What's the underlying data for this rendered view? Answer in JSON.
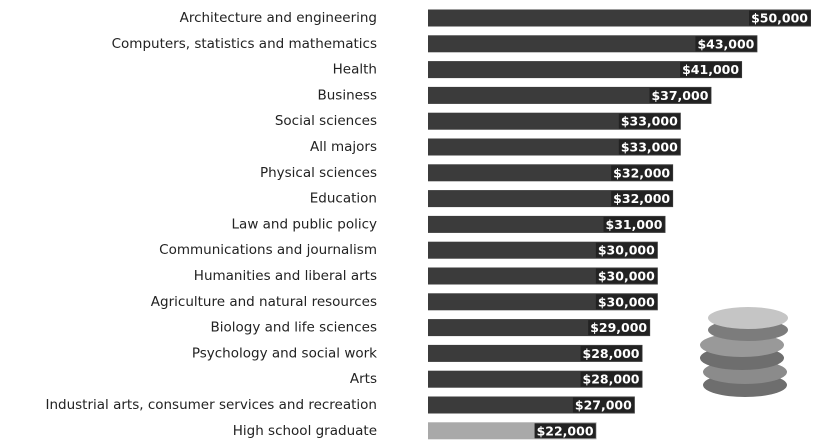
{
  "chart_data": {
    "type": "hbar",
    "categories": [
      "Architecture and engineering",
      "Computers, statistics and mathematics",
      "Health",
      "Business",
      "Social sciences",
      "All majors",
      "Physical sciences",
      "Education",
      "Law and public policy",
      "Communications and journalism",
      "Humanities and liberal arts",
      "Agriculture and natural resources",
      "Biology and life sciences",
      "Psychology and social work",
      "Arts",
      "Industrial arts, consumer services and recreation",
      "High school graduate"
    ],
    "values": [
      50000,
      43000,
      41000,
      37000,
      33000,
      33000,
      32000,
      32000,
      31000,
      30000,
      30000,
      30000,
      29000,
      28000,
      28000,
      27000,
      22000
    ],
    "value_labels": [
      "$50,000",
      "$43,000",
      "$41,000",
      "$37,000",
      "$33,000",
      "$33,000",
      "$32,000",
      "$32,000",
      "$31,000",
      "$30,000",
      "$30,000",
      "$30,000",
      "$29,000",
      "$28,000",
      "$28,000",
      "$27,000",
      "$22,000"
    ],
    "colors": [
      "#3b3b3b",
      "#3b3b3b",
      "#3b3b3b",
      "#3b3b3b",
      "#3b3b3b",
      "#3b3b3b",
      "#3b3b3b",
      "#3b3b3b",
      "#3b3b3b",
      "#3b3b3b",
      "#3b3b3b",
      "#3b3b3b",
      "#3b3b3b",
      "#3b3b3b",
      "#3b3b3b",
      "#3b3b3b",
      "#a9a9a9"
    ]
  }
}
